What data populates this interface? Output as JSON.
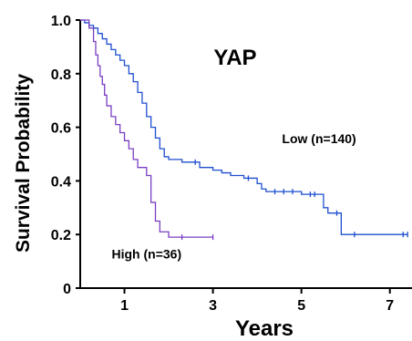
{
  "chart_data": {
    "type": "line",
    "subtype": "kaplan-meier",
    "title": "YAP",
    "xlabel": "Years",
    "ylabel": "Survival Probability",
    "xlim": [
      0,
      7.5
    ],
    "ylim": [
      0,
      1.0
    ],
    "xticks": [
      1,
      3,
      5,
      7
    ],
    "yticks": [
      0,
      0.2,
      0.4,
      0.6,
      0.8,
      1.0
    ],
    "ytick_labels": [
      "0",
      "0.2",
      "0.4",
      "0.6",
      "0.8",
      "1.0"
    ],
    "grid": false,
    "legend": "none",
    "series": [
      {
        "name": "Low (n=140)",
        "color": "#1f4fd0",
        "x": [
          0,
          0.1,
          0.2,
          0.3,
          0.4,
          0.5,
          0.6,
          0.7,
          0.8,
          0.9,
          1.0,
          1.1,
          1.2,
          1.3,
          1.4,
          1.5,
          1.6,
          1.7,
          1.8,
          1.9,
          2.0,
          2.3,
          2.6,
          2.7,
          3.0,
          3.2,
          3.4,
          3.7,
          3.8,
          4.0,
          4.1,
          4.2,
          4.4,
          4.6,
          4.8,
          5.0,
          5.2,
          5.3,
          5.5,
          5.6,
          5.8,
          5.9,
          6.2,
          7.3,
          7.4
        ],
        "y": [
          1.0,
          0.99,
          0.98,
          0.97,
          0.95,
          0.93,
          0.91,
          0.89,
          0.87,
          0.85,
          0.83,
          0.8,
          0.77,
          0.73,
          0.69,
          0.64,
          0.6,
          0.56,
          0.52,
          0.49,
          0.48,
          0.47,
          0.47,
          0.45,
          0.44,
          0.43,
          0.42,
          0.41,
          0.41,
          0.39,
          0.37,
          0.36,
          0.36,
          0.36,
          0.36,
          0.35,
          0.35,
          0.35,
          0.3,
          0.28,
          0.28,
          0.2,
          0.2,
          0.2,
          0.2
        ]
      },
      {
        "name": "High  (n=36)",
        "color": "#7a3fc2",
        "x": [
          0,
          0.2,
          0.3,
          0.35,
          0.4,
          0.45,
          0.5,
          0.55,
          0.6,
          0.7,
          0.8,
          0.9,
          1.0,
          1.1,
          1.2,
          1.3,
          1.5,
          1.6,
          1.7,
          1.8,
          2.0,
          2.3,
          3.0
        ],
        "y": [
          1.0,
          0.97,
          0.92,
          0.87,
          0.83,
          0.79,
          0.76,
          0.72,
          0.68,
          0.64,
          0.61,
          0.58,
          0.55,
          0.52,
          0.48,
          0.45,
          0.42,
          0.32,
          0.25,
          0.21,
          0.19,
          0.19,
          0.19
        ]
      }
    ],
    "annotations": [
      {
        "text": "Low (n=140)",
        "x": 5.4,
        "y": 0.54
      },
      {
        "text": "High  (n=36)",
        "x": 1.5,
        "y": 0.11
      }
    ]
  }
}
